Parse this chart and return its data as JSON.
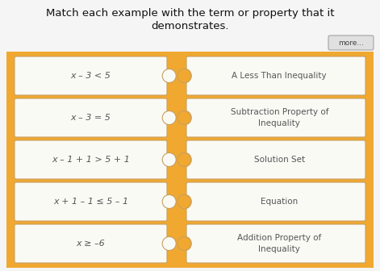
{
  "title_line1": "Match each example with the term or property that it",
  "title_line2": "demonstrates.",
  "bg_color": "#F0A830",
  "card_bg": "#FAFAF5",
  "card_border": "#C8A060",
  "title_color": "#111111",
  "left_items": [
    "x – 3 < 5",
    "x – 3 = 5",
    "x – 1 + 1 > 5 + 1",
    "x + 1 – 1 ≤ 5 – 1",
    "x ≥ –6"
  ],
  "right_items": [
    "A Less Than Inequality",
    "Subtraction Property of\nInequality",
    "Solution Set",
    "Equation",
    "Addition Property of\nInequality"
  ],
  "card_text_color": "#555555",
  "outer_bg": "#F5F5F5",
  "fig_w": 4.71,
  "fig_h": 3.36,
  "dpi": 100
}
